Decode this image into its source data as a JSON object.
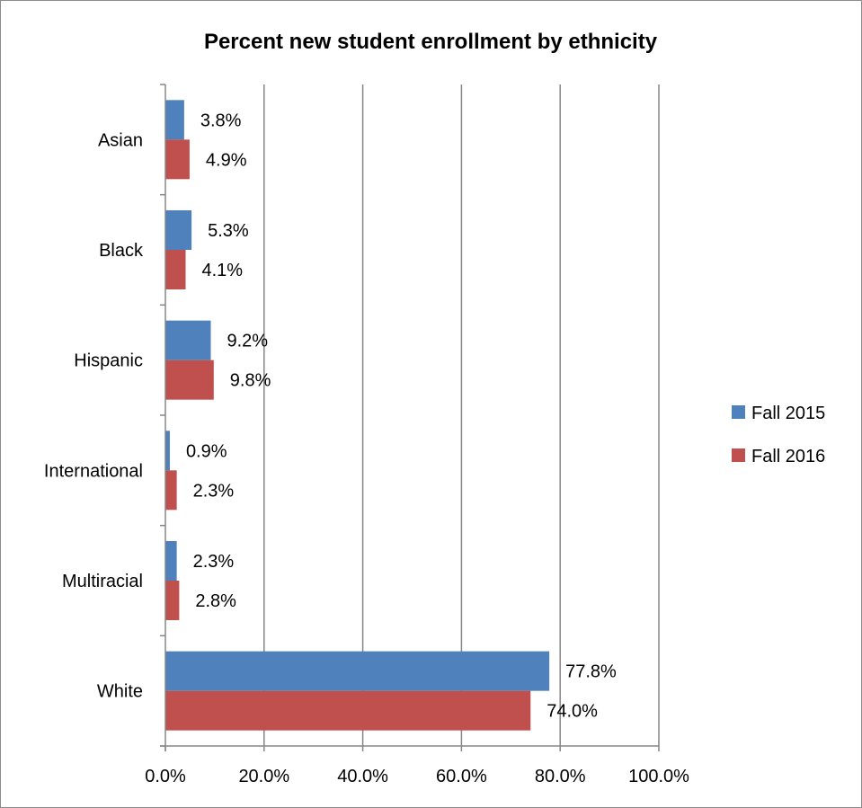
{
  "chart_data": {
    "type": "bar",
    "orientation": "horizontal",
    "title": "Percent new student enrollment by ethnicity",
    "categories": [
      "Asian",
      "Black",
      "Hispanic",
      "International",
      "Multiracial",
      "White"
    ],
    "series": [
      {
        "name": "Fall 2015",
        "color": "#4f81bd",
        "values": [
          3.8,
          5.3,
          9.2,
          0.9,
          2.3,
          77.8
        ],
        "labels": [
          "3.8%",
          "5.3%",
          "9.2%",
          "0.9%",
          "2.3%",
          "77.8%"
        ]
      },
      {
        "name": "Fall 2016",
        "color": "#c0504d",
        "values": [
          4.9,
          4.1,
          9.8,
          2.3,
          2.8,
          74.0
        ],
        "labels": [
          "4.9%",
          "4.1%",
          "9.8%",
          "2.3%",
          "2.8%",
          "74.0%"
        ]
      }
    ],
    "xlim": [
      0,
      100
    ],
    "xticks": [
      0,
      20,
      40,
      60,
      80,
      100
    ],
    "xtick_labels": [
      "0.0%",
      "20.0%",
      "40.0%",
      "60.0%",
      "80.0%",
      "100.0%"
    ],
    "grid": "vertical",
    "legend_position": "right",
    "gridline_color": "#868686"
  }
}
